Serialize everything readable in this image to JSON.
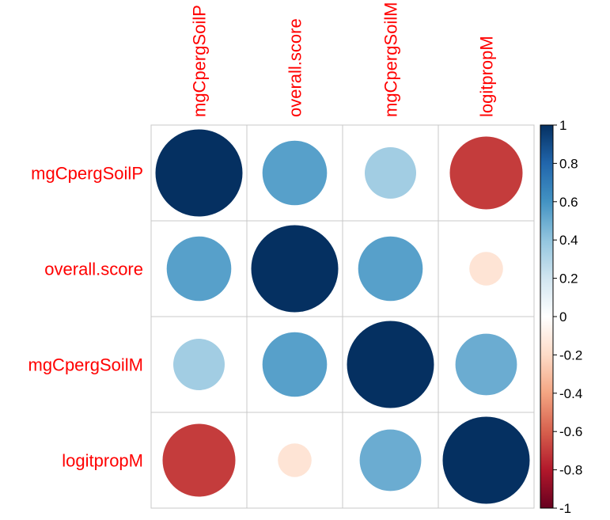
{
  "chart_data": {
    "type": "heatmap",
    "title": "",
    "variables": [
      "mgCpergSoilP",
      "overall.score",
      "mgCpergSoilM",
      "logitpropM"
    ],
    "column_labels": [
      "mgCpergSoilP",
      "overall.score",
      "mgCpergSoilM",
      "logitpropM"
    ],
    "matrix": [
      [
        1.0,
        0.55,
        0.35,
        -0.7
      ],
      [
        0.55,
        1.0,
        0.55,
        -0.15
      ],
      [
        0.35,
        0.55,
        1.0,
        0.5
      ],
      [
        -0.7,
        -0.15,
        0.5,
        1.0
      ]
    ],
    "colorbar": {
      "range": [
        -1,
        1
      ],
      "ticks": [
        1,
        0.8,
        0.6,
        0.4,
        0.2,
        0,
        -0.2,
        -0.4,
        -0.6,
        -0.8,
        -1
      ],
      "tick_labels": [
        "1",
        "0.8",
        "0.6",
        "0.4",
        "0.2",
        "0",
        "-0.2",
        "-0.4",
        "-0.6",
        "-0.8",
        "-1"
      ],
      "colors": [
        "#67001F",
        "#B2182B",
        "#D6604D",
        "#F4A582",
        "#FDDBC7",
        "#FFFFFF",
        "#D1E5F0",
        "#92C5DE",
        "#4393C3",
        "#2166AC",
        "#053061"
      ]
    },
    "grid": true,
    "legend": "right"
  }
}
